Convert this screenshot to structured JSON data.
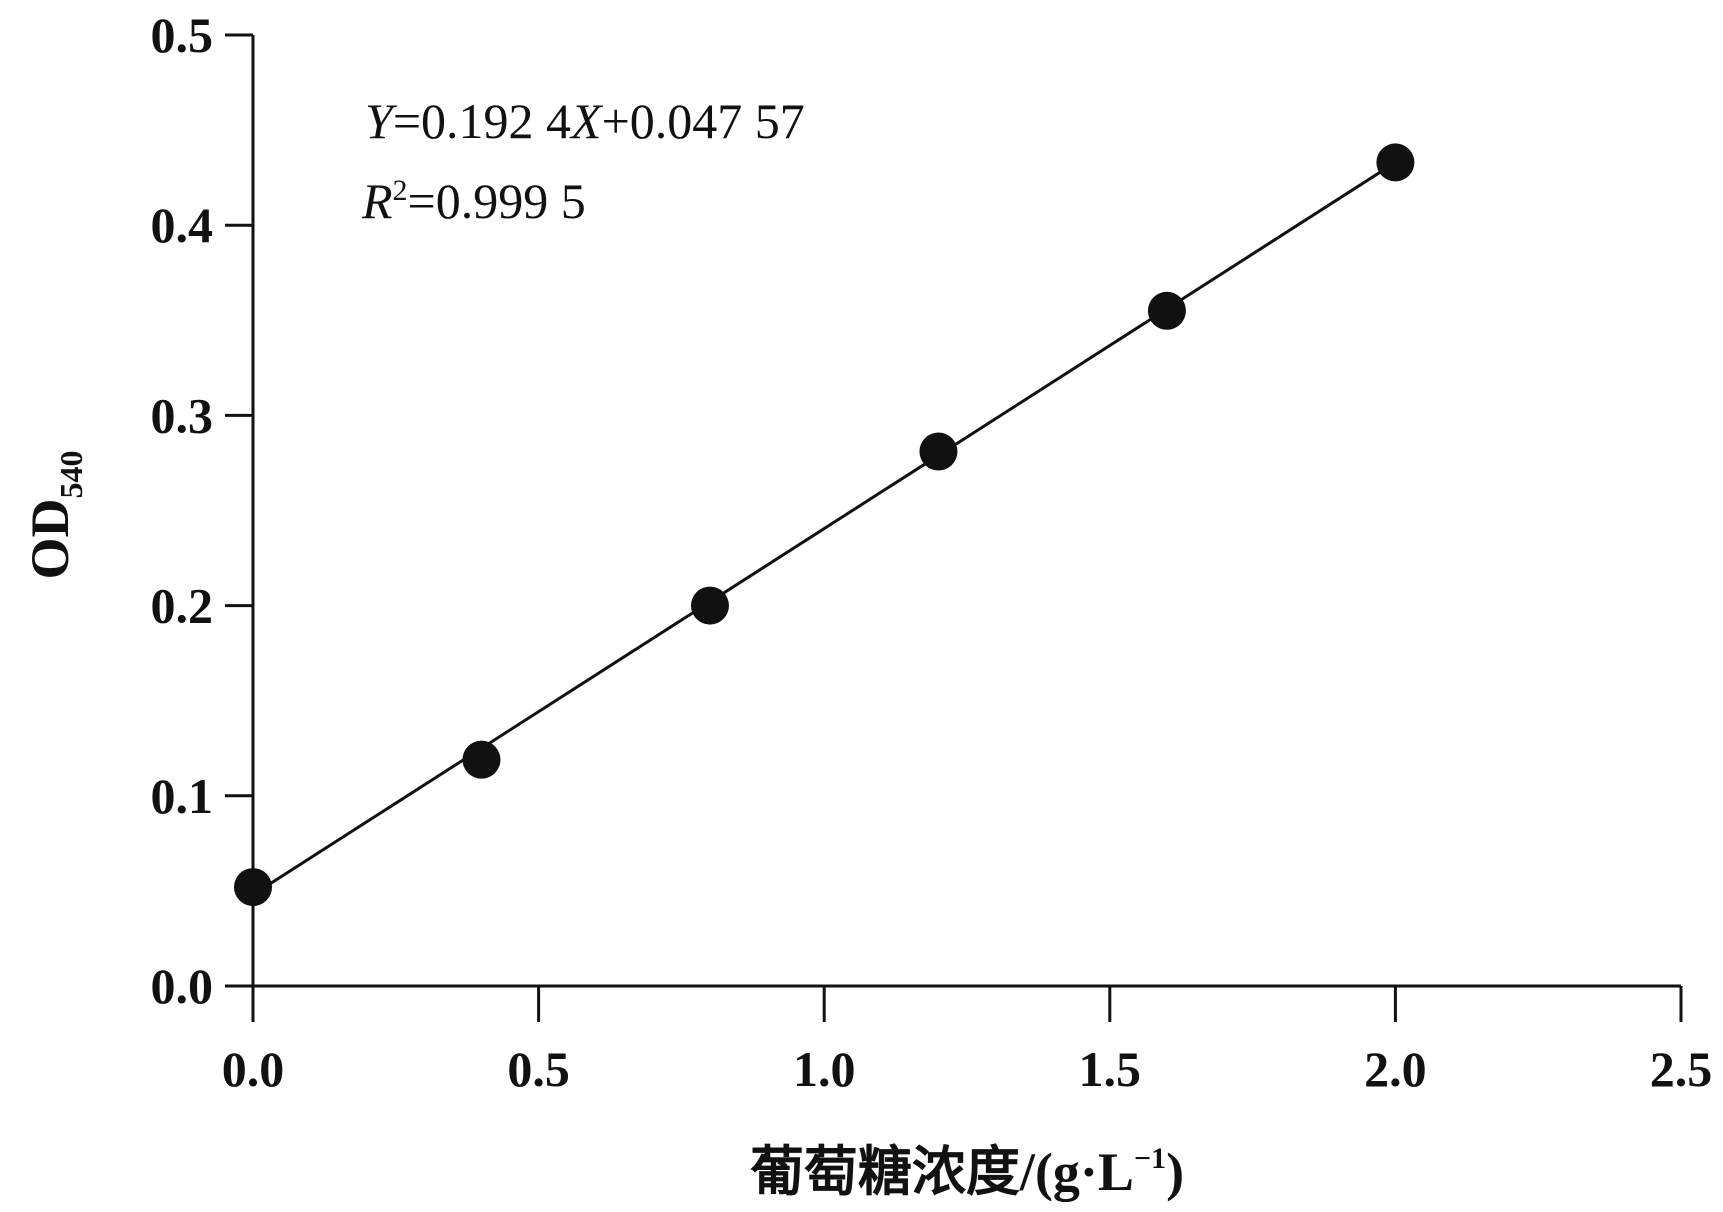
{
  "chart_data": {
    "type": "scatter",
    "equation": [
      "Y",
      "=0.192 4",
      "X",
      "+0.047 57"
    ],
    "r_squared": [
      "R",
      "2",
      "=0.999 5"
    ],
    "ylabel": [
      "OD",
      "540"
    ],
    "xlabel": [
      "葡萄糖浓度/(g·L",
      "−1",
      ")"
    ],
    "x": [
      0,
      0.4,
      0.8,
      1.2,
      1.6,
      2.0
    ],
    "values": [
      0.052,
      0.119,
      0.2,
      0.281,
      0.355,
      0.433
    ],
    "color": "#111111",
    "trendline": {
      "x": [
        0,
        2.0
      ],
      "values": [
        0.048,
        0.433
      ]
    },
    "xlim": [
      0,
      2.5
    ],
    "xticks": [
      {
        "value": 0,
        "label": "0.0"
      },
      0.5,
      {
        "value": 1,
        "label": "1.0"
      },
      1.5,
      {
        "value": 2,
        "label": "2.0"
      },
      2.5
    ],
    "ylim": [
      0,
      0.5
    ],
    "yticks": [
      {
        "value": 0,
        "label": "0.0"
      },
      0.1,
      0.2,
      0.3,
      0.4,
      0.5
    ]
  }
}
